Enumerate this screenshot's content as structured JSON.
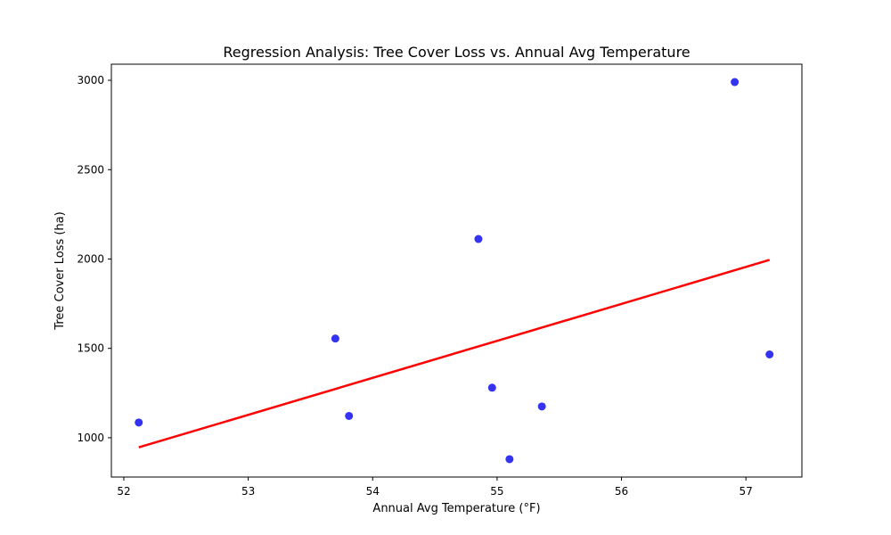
{
  "chart_data": {
    "type": "scatter",
    "title": "Regression Analysis: Tree Cover Loss vs. Annual Avg Temperature",
    "xlabel": "Annual Avg Temperature (°F)",
    "ylabel": "Tree Cover Loss (ha)",
    "xlim": [
      51.9,
      57.45
    ],
    "ylim": [
      780,
      3090
    ],
    "xticks": [
      52,
      53,
      54,
      55,
      56,
      57
    ],
    "yticks": [
      1000,
      1500,
      2000,
      2500,
      3000
    ],
    "grid": false,
    "series": [
      {
        "kind": "scatter",
        "color": "#0000ee",
        "points": [
          {
            "x": 52.12,
            "y": 1085
          },
          {
            "x": 53.7,
            "y": 1555
          },
          {
            "x": 53.81,
            "y": 1122
          },
          {
            "x": 54.85,
            "y": 2112
          },
          {
            "x": 54.96,
            "y": 1280
          },
          {
            "x": 55.1,
            "y": 880
          },
          {
            "x": 55.36,
            "y": 1175
          },
          {
            "x": 56.91,
            "y": 2990
          },
          {
            "x": 57.19,
            "y": 1466
          }
        ]
      },
      {
        "kind": "regression-line",
        "color": "#ff0000",
        "points": [
          {
            "x": 52.12,
            "y": 946
          },
          {
            "x": 57.19,
            "y": 1995
          }
        ]
      }
    ]
  }
}
